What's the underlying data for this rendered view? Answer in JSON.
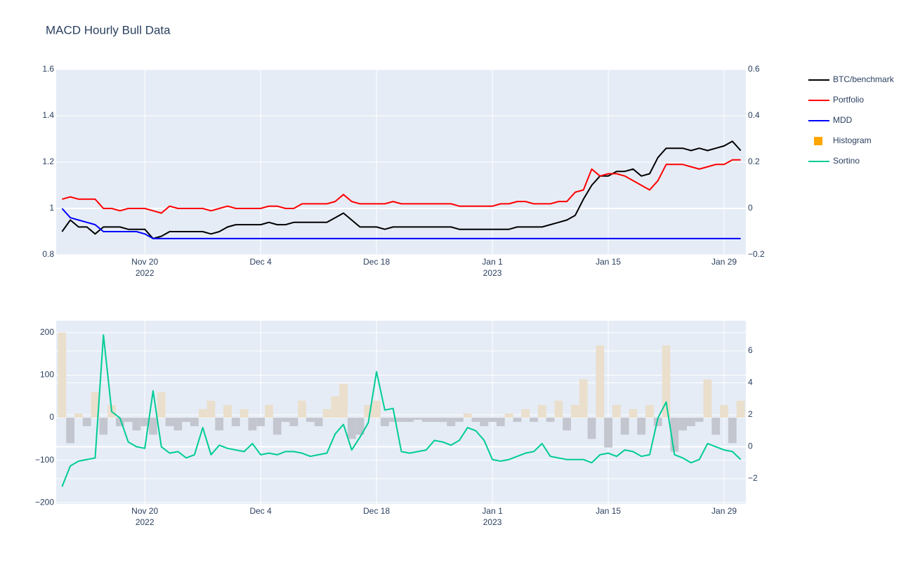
{
  "chart_data": [
    {
      "type": "line",
      "title": "MACD Hourly Bull Data",
      "legend": "right",
      "grid": true,
      "x": [
        "2022-11-10",
        "2022-11-11",
        "2022-11-12",
        "2022-11-13",
        "2022-11-14",
        "2022-11-15",
        "2022-11-16",
        "2022-11-17",
        "2022-11-18",
        "2022-11-19",
        "2022-11-20",
        "2022-11-21",
        "2022-11-22",
        "2022-11-23",
        "2022-11-24",
        "2022-11-25",
        "2022-11-26",
        "2022-11-27",
        "2022-11-28",
        "2022-11-29",
        "2022-11-30",
        "2022-12-01",
        "2022-12-02",
        "2022-12-03",
        "2022-12-04",
        "2022-12-05",
        "2022-12-06",
        "2022-12-07",
        "2022-12-08",
        "2022-12-09",
        "2022-12-10",
        "2022-12-11",
        "2022-12-12",
        "2022-12-13",
        "2022-12-14",
        "2022-12-15",
        "2022-12-16",
        "2022-12-17",
        "2022-12-18",
        "2022-12-19",
        "2022-12-20",
        "2022-12-21",
        "2022-12-22",
        "2022-12-23",
        "2022-12-24",
        "2022-12-25",
        "2022-12-26",
        "2022-12-27",
        "2022-12-28",
        "2022-12-29",
        "2022-12-30",
        "2022-12-31",
        "2023-01-01",
        "2023-01-02",
        "2023-01-03",
        "2023-01-04",
        "2023-01-05",
        "2023-01-06",
        "2023-01-07",
        "2023-01-08",
        "2023-01-09",
        "2023-01-10",
        "2023-01-11",
        "2023-01-12",
        "2023-01-13",
        "2023-01-14",
        "2023-01-15",
        "2023-01-16",
        "2023-01-17",
        "2023-01-18",
        "2023-01-19",
        "2023-01-20",
        "2023-01-21",
        "2023-01-22",
        "2023-01-23",
        "2023-01-24",
        "2023-01-25",
        "2023-01-26",
        "2023-01-27",
        "2023-01-28",
        "2023-01-29",
        "2023-01-30",
        "2023-01-31"
      ],
      "xlim": [
        "2022-11-09 07:00",
        "2023-01-31 15:00"
      ],
      "xticks": [
        {
          "value": "2022-11-20",
          "label": "Nov 20\n2022"
        },
        {
          "value": "2022-12-04",
          "label": "Dec 4"
        },
        {
          "value": "2022-12-18",
          "label": "Dec 18"
        },
        {
          "value": "2023-01-01",
          "label": "Jan 1\n2023"
        },
        {
          "value": "2023-01-15",
          "label": "Jan 15"
        },
        {
          "value": "2023-01-29",
          "label": "Jan 29"
        }
      ],
      "ylim": [
        0.8,
        1.6
      ],
      "yticks": [
        0.8,
        1,
        1.2,
        1.4,
        1.6
      ],
      "y2lim": [
        -0.2,
        0.6
      ],
      "y2ticks": [
        {
          "value": -0.2,
          "label": "−0.2"
        },
        0,
        0.2,
        0.4,
        0.6
      ],
      "series": [
        {
          "name": "BTC/benchmark",
          "color": "#000000",
          "values": [
            0.9,
            0.95,
            0.92,
            0.92,
            0.89,
            0.92,
            0.92,
            0.92,
            0.91,
            0.91,
            0.91,
            0.87,
            0.88,
            0.9,
            0.9,
            0.9,
            0.9,
            0.9,
            0.89,
            0.9,
            0.92,
            0.93,
            0.93,
            0.93,
            0.93,
            0.94,
            0.93,
            0.93,
            0.94,
            0.94,
            0.94,
            0.94,
            0.94,
            0.96,
            0.98,
            0.95,
            0.92,
            0.92,
            0.92,
            0.91,
            0.92,
            0.92,
            0.92,
            0.92,
            0.92,
            0.92,
            0.92,
            0.92,
            0.91,
            0.91,
            0.91,
            0.91,
            0.91,
            0.91,
            0.91,
            0.92,
            0.92,
            0.92,
            0.92,
            0.93,
            0.94,
            0.95,
            0.97,
            1.04,
            1.1,
            1.14,
            1.14,
            1.16,
            1.16,
            1.17,
            1.14,
            1.15,
            1.22,
            1.26,
            1.26,
            1.26,
            1.25,
            1.26,
            1.25,
            1.26,
            1.27,
            1.29,
            1.25
          ]
        },
        {
          "name": "Portfolio",
          "color": "#ff0000",
          "values": [
            1.04,
            1.05,
            1.04,
            1.04,
            1.04,
            1,
            1,
            0.99,
            1,
            1,
            1,
            0.99,
            0.98,
            1.01,
            1,
            1,
            1,
            1,
            0.99,
            1,
            1.01,
            1,
            1,
            1,
            1,
            1.01,
            1.01,
            1,
            1,
            1.02,
            1.02,
            1.02,
            1.02,
            1.03,
            1.06,
            1.03,
            1.02,
            1.02,
            1.02,
            1.02,
            1.03,
            1.02,
            1.02,
            1.02,
            1.02,
            1.02,
            1.02,
            1.02,
            1.01,
            1.01,
            1.01,
            1.01,
            1.01,
            1.02,
            1.02,
            1.03,
            1.03,
            1.02,
            1.02,
            1.02,
            1.03,
            1.03,
            1.07,
            1.08,
            1.17,
            1.14,
            1.15,
            1.15,
            1.14,
            1.12,
            1.1,
            1.08,
            1.12,
            1.19,
            1.19,
            1.19,
            1.18,
            1.17,
            1.18,
            1.19,
            1.19,
            1.21,
            1.21
          ]
        },
        {
          "name": "MDD",
          "color": "#0000ff",
          "values": [
            1,
            0.96,
            0.95,
            0.94,
            0.93,
            0.9,
            0.9,
            0.9,
            0.9,
            0.9,
            0.89,
            0.87,
            0.87,
            0.87,
            0.87,
            0.87,
            0.87,
            0.87,
            0.87,
            0.87,
            0.87,
            0.87,
            0.87,
            0.87,
            0.87,
            0.87,
            0.87,
            0.87,
            0.87,
            0.87,
            0.87,
            0.87,
            0.87,
            0.87,
            0.87,
            0.87,
            0.87,
            0.87,
            0.87,
            0.87,
            0.87,
            0.87,
            0.87,
            0.87,
            0.87,
            0.87,
            0.87,
            0.87,
            0.87,
            0.87,
            0.87,
            0.87,
            0.87,
            0.87,
            0.87,
            0.87,
            0.87,
            0.87,
            0.87,
            0.87,
            0.87,
            0.87,
            0.87,
            0.87,
            0.87,
            0.87,
            0.87,
            0.87,
            0.87,
            0.87,
            0.87,
            0.87,
            0.87,
            0.87,
            0.87,
            0.87,
            0.87,
            0.87,
            0.87,
            0.87,
            0.87,
            0.87,
            0.87
          ]
        }
      ]
    },
    {
      "type": "line",
      "grid": true,
      "x": [
        "2022-11-10",
        "2022-11-11",
        "2022-11-12",
        "2022-11-13",
        "2022-11-14",
        "2022-11-15",
        "2022-11-16",
        "2022-11-17",
        "2022-11-18",
        "2022-11-19",
        "2022-11-20",
        "2022-11-21",
        "2022-11-22",
        "2022-11-23",
        "2022-11-24",
        "2022-11-25",
        "2022-11-26",
        "2022-11-27",
        "2022-11-28",
        "2022-11-29",
        "2022-11-30",
        "2022-12-01",
        "2022-12-02",
        "2022-12-03",
        "2022-12-04",
        "2022-12-05",
        "2022-12-06",
        "2022-12-07",
        "2022-12-08",
        "2022-12-09",
        "2022-12-10",
        "2022-12-11",
        "2022-12-12",
        "2022-12-13",
        "2022-12-14",
        "2022-12-15",
        "2022-12-16",
        "2022-12-17",
        "2022-12-18",
        "2022-12-19",
        "2022-12-20",
        "2022-12-21",
        "2022-12-22",
        "2022-12-23",
        "2022-12-24",
        "2022-12-25",
        "2022-12-26",
        "2022-12-27",
        "2022-12-28",
        "2022-12-29",
        "2022-12-30",
        "2022-12-31",
        "2023-01-01",
        "2023-01-02",
        "2023-01-03",
        "2023-01-04",
        "2023-01-05",
        "2023-01-06",
        "2023-01-07",
        "2023-01-08",
        "2023-01-09",
        "2023-01-10",
        "2023-01-11",
        "2023-01-12",
        "2023-01-13",
        "2023-01-14",
        "2023-01-15",
        "2023-01-16",
        "2023-01-17",
        "2023-01-18",
        "2023-01-19",
        "2023-01-20",
        "2023-01-21",
        "2023-01-22",
        "2023-01-23",
        "2023-01-24",
        "2023-01-25",
        "2023-01-26",
        "2023-01-27",
        "2023-01-28",
        "2023-01-29",
        "2023-01-30",
        "2023-01-31"
      ],
      "xlim": [
        "2022-11-09 07:00",
        "2023-01-31 15:00"
      ],
      "xticks": [
        {
          "value": "2022-11-20",
          "label": "Nov 20\n2022"
        },
        {
          "value": "2022-12-04",
          "label": "Dec 4"
        },
        {
          "value": "2022-12-18",
          "label": "Dec 18"
        },
        {
          "value": "2023-01-01",
          "label": "Jan 1\n2023"
        },
        {
          "value": "2023-01-15",
          "label": "Jan 15"
        },
        {
          "value": "2023-01-29",
          "label": "Jan 29"
        }
      ],
      "ylim": [
        -203,
        228
      ],
      "yticks": [
        {
          "value": -200,
          "label": "−200"
        },
        {
          "value": -100,
          "label": "−100"
        },
        0,
        100,
        200
      ],
      "y2lim": [
        -3.58,
        7.89
      ],
      "y2ticks": [
        {
          "value": -2,
          "label": "−2"
        },
        0,
        2,
        4,
        6
      ],
      "series": [
        {
          "name": "Histogram",
          "type": "bar",
          "color": "#ffa500",
          "positive_color": "#eadfcc",
          "negative_color": "#c3c6ce",
          "values": [
            200,
            -60,
            10,
            -20,
            60,
            -40,
            30,
            -20,
            -10,
            -30,
            -20,
            -40,
            60,
            -20,
            -30,
            -10,
            -20,
            20,
            40,
            -30,
            30,
            -20,
            20,
            -30,
            -20,
            30,
            -40,
            -10,
            -20,
            40,
            -10,
            -20,
            20,
            50,
            80,
            -50,
            -40,
            30,
            40,
            -20,
            -10,
            -10,
            -10,
            -5,
            -10,
            -10,
            -10,
            -20,
            -10,
            10,
            -10,
            -20,
            -10,
            -20,
            10,
            -10,
            20,
            -10,
            30,
            -10,
            40,
            -30,
            30,
            90,
            -50,
            170,
            -70,
            30,
            -40,
            20,
            -40,
            30,
            -20,
            170,
            -80,
            -30,
            -20,
            -10,
            90,
            -40,
            30,
            -60,
            40
          ]
        },
        {
          "name": "Sortino",
          "axis": "y2",
          "color": "#00cc96",
          "values": [
            -2.5,
            -1.2,
            -0.9,
            -0.8,
            -0.7,
            7.0,
            2.2,
            1.8,
            0.3,
            0.0,
            -0.1,
            3.5,
            0,
            -0.4,
            -0.3,
            -0.7,
            -0.5,
            1.2,
            -0.5,
            0.1,
            -0.1,
            -0.2,
            -0.3,
            0.2,
            -0.5,
            -0.4,
            -0.5,
            -0.3,
            -0.3,
            -0.4,
            -0.6,
            -0.5,
            -0.4,
            0.8,
            1.4,
            -0.2,
            0.6,
            1.5,
            4.7,
            2.3,
            2.4,
            -0.3,
            -0.4,
            -0.3,
            -0.2,
            0.4,
            0.3,
            0.1,
            0.4,
            1.2,
            1.0,
            0.4,
            -0.8,
            -0.9,
            -0.8,
            -0.6,
            -0.4,
            -0.3,
            0.2,
            -0.6,
            -0.7,
            -0.8,
            -0.8,
            -0.8,
            -1.0,
            -0.5,
            -0.4,
            -0.6,
            -0.2,
            -0.3,
            -0.6,
            -0.5,
            1.8,
            2.8,
            -0.5,
            -0.7,
            -1.0,
            -0.8,
            0.2,
            0,
            -0.2,
            -0.3,
            -0.8
          ]
        }
      ]
    }
  ]
}
